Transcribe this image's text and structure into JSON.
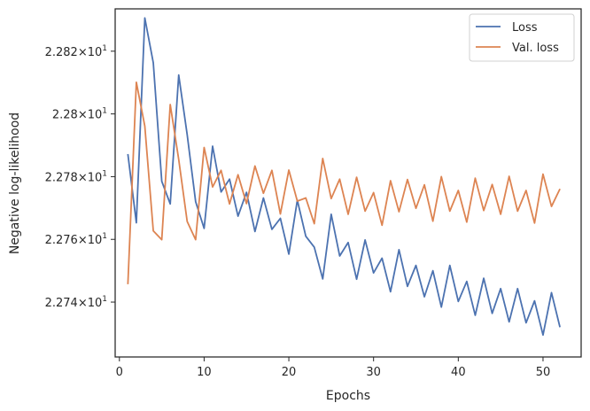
{
  "chart_data": {
    "type": "line",
    "xlabel": "Epochs",
    "ylabel": "Negative log-likelihood",
    "xlim": [
      -0.5,
      54.5
    ],
    "ylim": [
      22.7225,
      22.8335
    ],
    "x_ticks": [
      0,
      10,
      20,
      30,
      40,
      50
    ],
    "y_ticks": [
      {
        "value": 22.74,
        "mantissa": "2.274",
        "exponent": "1"
      },
      {
        "value": 22.76,
        "mantissa": "2.276",
        "exponent": "1"
      },
      {
        "value": 22.78,
        "mantissa": "2.278",
        "exponent": "1"
      },
      {
        "value": 22.8,
        "mantissa": "2.28",
        "exponent": "1"
      },
      {
        "value": 22.82,
        "mantissa": "2.282",
        "exponent": "1"
      }
    ],
    "grid": false,
    "legend_position": "top-right",
    "x": [
      1,
      2,
      3,
      4,
      5,
      6,
      7,
      8,
      9,
      10,
      11,
      12,
      13,
      14,
      15,
      16,
      17,
      18,
      19,
      20,
      21,
      22,
      23,
      24,
      25,
      26,
      27,
      28,
      29,
      30,
      31,
      32,
      33,
      34,
      35,
      36,
      37,
      38,
      39,
      40,
      41,
      42,
      43,
      44,
      45,
      46,
      47,
      48,
      49,
      50,
      51,
      52
    ],
    "series": [
      {
        "name": "Loss",
        "color": "#4c72b0",
        "values": [
          22.7872,
          22.7653,
          22.8306,
          22.8163,
          22.7785,
          22.7713,
          22.8124,
          22.7934,
          22.772,
          22.7635,
          22.7897,
          22.7751,
          22.7792,
          22.7674,
          22.775,
          22.7625,
          22.7732,
          22.7632,
          22.7667,
          22.7553,
          22.7725,
          22.761,
          22.7575,
          22.7474,
          22.768,
          22.7547,
          22.759,
          22.7473,
          22.7598,
          22.7493,
          22.754,
          22.7433,
          22.7567,
          22.745,
          22.7517,
          22.7417,
          22.75,
          22.7384,
          22.7517,
          22.7402,
          22.7466,
          22.7358,
          22.7476,
          22.7364,
          22.7443,
          22.7337,
          22.7443,
          22.7334,
          22.7404,
          22.7295,
          22.743,
          22.732
        ]
      },
      {
        "name": "Val. loss",
        "color": "#dd8452",
        "values": [
          22.7457,
          22.8101,
          22.7961,
          22.7627,
          22.7599,
          22.803,
          22.7855,
          22.7657,
          22.7599,
          22.7893,
          22.7767,
          22.782,
          22.7713,
          22.7806,
          22.7714,
          22.7834,
          22.7747,
          22.782,
          22.7681,
          22.7821,
          22.7722,
          22.7732,
          22.765,
          22.7858,
          22.773,
          22.7792,
          22.768,
          22.7798,
          22.769,
          22.7749,
          22.7645,
          22.7787,
          22.7688,
          22.7791,
          22.7699,
          22.7774,
          22.7658,
          22.78,
          22.769,
          22.7756,
          22.7655,
          22.7795,
          22.7692,
          22.7775,
          22.768,
          22.7801,
          22.769,
          22.7756,
          22.7652,
          22.7808,
          22.7705,
          22.7761
        ]
      }
    ]
  }
}
